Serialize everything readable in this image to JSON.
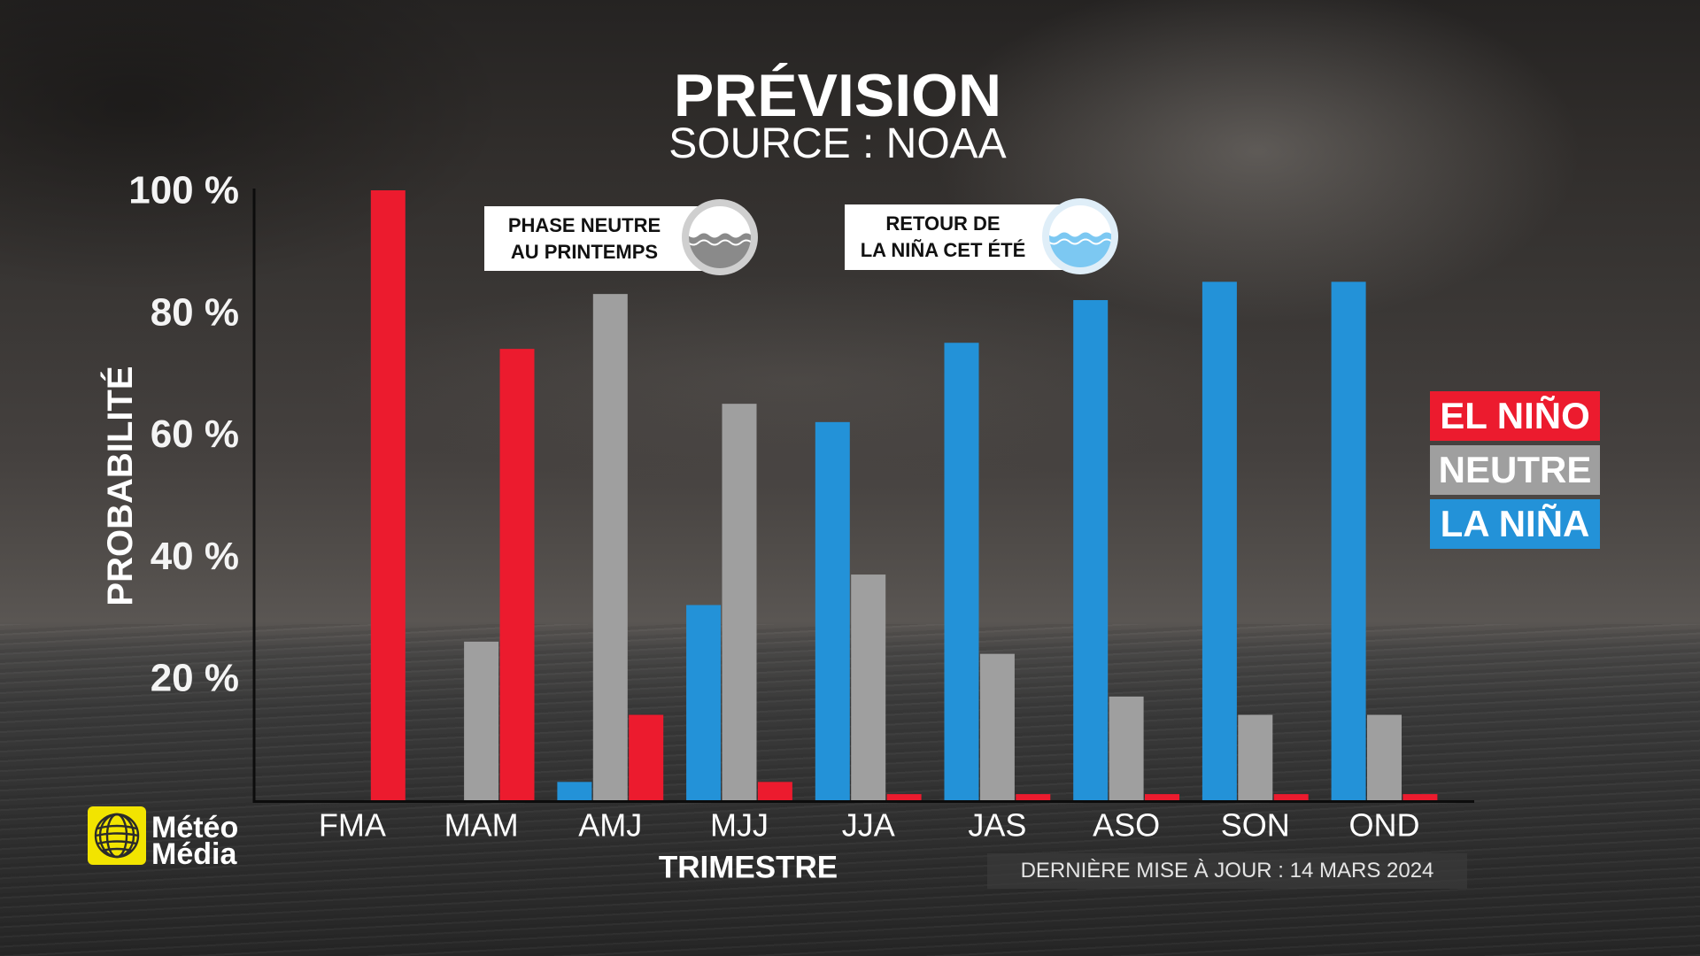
{
  "chart_data": {
    "type": "bar",
    "title": "PRÉVISION",
    "subtitle": "SOURCE : NOAA",
    "xlabel": "TRIMESTRE",
    "ylabel": "PROBABILITÉ",
    "categories": [
      "FMA",
      "MAM",
      "AMJ",
      "MJJ",
      "JJA",
      "JAS",
      "ASO",
      "SON",
      "OND"
    ],
    "series": [
      {
        "name": "EL NIÑO",
        "color": "#ec1b2e",
        "values": [
          100,
          74,
          14,
          3,
          1,
          1,
          1,
          1,
          1
        ]
      },
      {
        "name": "NEUTRE",
        "color": "#9f9f9f",
        "values": [
          0,
          26,
          83,
          65,
          37,
          24,
          17,
          14,
          14
        ]
      },
      {
        "name": "LA NIÑA",
        "color": "#2392d8",
        "values": [
          0,
          0,
          3,
          32,
          62,
          75,
          82,
          85,
          85
        ]
      }
    ],
    "ylim": [
      0,
      100
    ],
    "yticks": [
      100,
      80,
      60,
      40,
      20
    ],
    "ytick_labels": [
      "100 %",
      "80 %",
      "60 %",
      "40 %",
      "20 %"
    ],
    "grid": false,
    "legend_placement": "right",
    "annotations": [
      {
        "lines": [
          "PHASE NEUTRE",
          "AU PRINTEMPS"
        ],
        "icon": "water-level-gray-icon"
      },
      {
        "lines": [
          "RETOUR DE",
          "LA NIÑA CET ÉTÉ"
        ],
        "icon": "water-level-blue-icon"
      }
    ]
  },
  "logo": {
    "line1": "Météo",
    "line2": "Média",
    "icon": "globe-icon",
    "color": "#f2e400"
  },
  "footer": {
    "updated": "DERNIÈRE MISE À JOUR : 14 MARS 2024"
  }
}
